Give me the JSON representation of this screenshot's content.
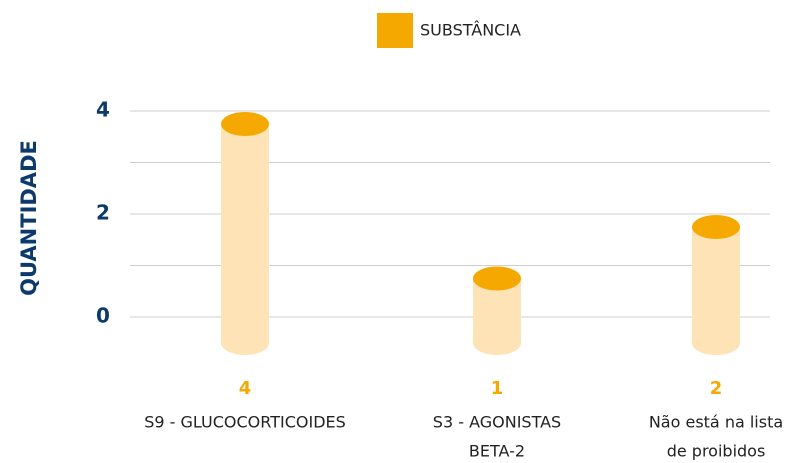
{
  "chart_data": {
    "type": "bar",
    "legend": "SUBSTÂNCIA",
    "y_label": "QUANTIDADE",
    "categories": [
      [
        "S9 - GLUCOCORTICOIDES"
      ],
      [
        "S3 - AGONISTAS",
        "BETA-2"
      ],
      [
        "Não está na lista",
        "de proibidos"
      ]
    ],
    "values": [
      4,
      1,
      2
    ],
    "color": "#f5a800",
    "body_color": "#fde3b5",
    "ylim": [
      0,
      4
    ],
    "yticks": [
      0,
      2,
      4
    ],
    "minor_yticks": [
      1,
      3
    ],
    "grid": true,
    "legend_position": "top"
  }
}
